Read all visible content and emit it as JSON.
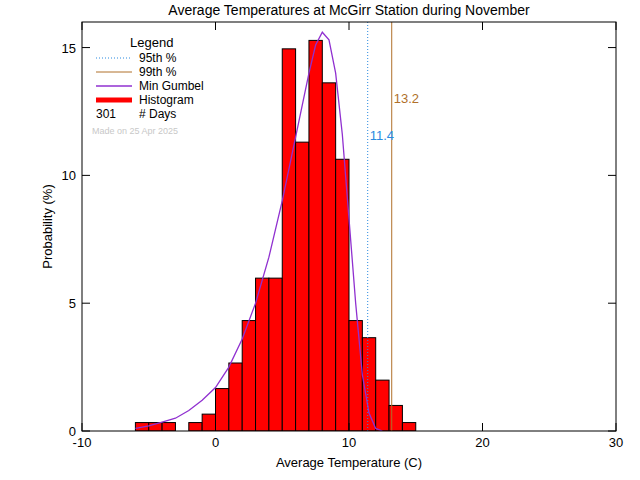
{
  "chart_data": {
    "type": "histogram",
    "title": "Average Temperatures at McGirr Station during November",
    "x_label": "Average Temperature (C)",
    "y_label": "Probability (%)",
    "name": "Histogram",
    "color": "#ff0000",
    "bins": [
      -6,
      -5,
      -4,
      -3,
      -2,
      -1,
      0,
      1,
      2,
      3,
      4,
      5,
      6,
      7,
      8,
      9,
      10,
      11,
      12,
      13,
      14,
      15
    ],
    "values": [
      0.33,
      0.33,
      0.33,
      0,
      0.33,
      0.66,
      1.66,
      2.66,
      4.32,
      5.98,
      5.98,
      14.95,
      11.3,
      15.28,
      13.62,
      10.63,
      4.32,
      3.65,
      1.99,
      1.0,
      0.33
    ],
    "xlim": [
      -10,
      30
    ],
    "ylim": [
      0,
      16
    ],
    "xticks": [
      -10,
      0,
      10,
      20,
      30
    ],
    "yticks": [
      0,
      5,
      10,
      15
    ],
    "legend": "top-left",
    "legend_title": "Legend",
    "reference_lines": [
      {
        "name": "95th %",
        "value": 11.4,
        "color": "#2a8ae0",
        "line_style": "dotted"
      },
      {
        "name": "99th %",
        "value": 13.2,
        "color": "#b0702a",
        "line_style": "solid"
      }
    ],
    "series": [
      {
        "name": "Min Gumbel",
        "type": "line",
        "color": "#9030d0",
        "x": [
          -6,
          -5,
          -4,
          -3,
          -2,
          -1,
          0,
          1,
          2,
          3,
          4,
          5,
          6,
          7,
          7.5,
          8,
          8.5,
          9,
          9.5,
          10,
          10.5,
          11,
          11.5,
          12,
          12.5
        ],
        "values": [
          0.1,
          0.2,
          0.35,
          0.5,
          0.8,
          1.2,
          1.7,
          2.5,
          3.6,
          5.0,
          6.8,
          9.0,
          11.5,
          14.0,
          15.1,
          15.6,
          15.3,
          14.0,
          11.6,
          8.3,
          5.0,
          2.2,
          0.7,
          0.1,
          0.0
        ]
      }
    ],
    "days": {
      "value": 301,
      "label": "# Days"
    },
    "annotations": [
      "Made on 25 Apr 2025"
    ]
  }
}
